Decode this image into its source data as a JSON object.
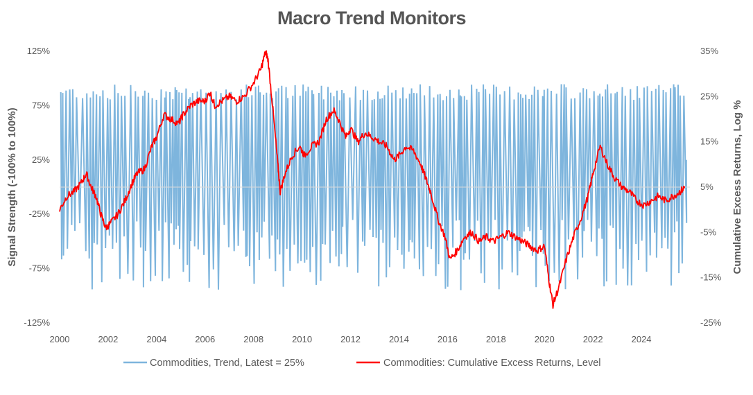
{
  "chart_data": {
    "type": "line",
    "title": "Macro Trend Monitors",
    "x_axis": {
      "ticks": [
        "2000",
        "2002",
        "2004",
        "2006",
        "2008",
        "2010",
        "2012",
        "2014",
        "2016",
        "2018",
        "2020",
        "2022",
        "2024"
      ],
      "range": [
        2000,
        2026
      ]
    },
    "y_left": {
      "label": "Signal Strength (-100% to 100%)",
      "ticks": [
        "125%",
        "75%",
        "25%",
        "-25%",
        "-75%",
        "-125%"
      ],
      "range": [
        -125,
        125
      ]
    },
    "y_right": {
      "label": "Cumulative Excess Returns, Log %",
      "ticks": [
        "35%",
        "25%",
        "15%",
        "5%",
        "-5%",
        "-15%",
        "-25%"
      ],
      "range": [
        -25,
        35
      ]
    },
    "series": [
      {
        "name": "Commodities, Trend, Latest = 25%",
        "axis": "left",
        "color": "#7EB5DD",
        "latest": 25
      },
      {
        "name": "Commodities: Cumulative Excess Returns, Level",
        "axis": "right",
        "color": "#FF0000",
        "points": [
          [
            2000.0,
            0
          ],
          [
            2000.3,
            3
          ],
          [
            2000.6,
            4
          ],
          [
            2000.9,
            6
          ],
          [
            2001.1,
            8
          ],
          [
            2001.3,
            5
          ],
          [
            2001.5,
            3
          ],
          [
            2001.7,
            -1
          ],
          [
            2001.9,
            -4
          ],
          [
            2002.1,
            -3
          ],
          [
            2002.4,
            -1
          ],
          [
            2002.7,
            2
          ],
          [
            2003.0,
            6
          ],
          [
            2003.2,
            8
          ],
          [
            2003.5,
            9
          ],
          [
            2003.8,
            14
          ],
          [
            2004.0,
            16
          ],
          [
            2004.3,
            21
          ],
          [
            2004.6,
            20
          ],
          [
            2004.9,
            19
          ],
          [
            2005.1,
            21
          ],
          [
            2005.4,
            23
          ],
          [
            2005.7,
            24
          ],
          [
            2006.0,
            24
          ],
          [
            2006.2,
            26
          ],
          [
            2006.4,
            23
          ],
          [
            2006.7,
            24
          ],
          [
            2007.0,
            25
          ],
          [
            2007.3,
            24
          ],
          [
            2007.6,
            25
          ],
          [
            2008.0,
            28
          ],
          [
            2008.3,
            31
          ],
          [
            2008.5,
            35
          ],
          [
            2008.6,
            33
          ],
          [
            2008.8,
            22
          ],
          [
            2009.0,
            10
          ],
          [
            2009.1,
            4
          ],
          [
            2009.3,
            8
          ],
          [
            2009.6,
            12
          ],
          [
            2009.9,
            14
          ],
          [
            2010.1,
            12
          ],
          [
            2010.4,
            14
          ],
          [
            2010.7,
            15
          ],
          [
            2011.0,
            20
          ],
          [
            2011.3,
            22
          ],
          [
            2011.5,
            20
          ],
          [
            2011.8,
            16
          ],
          [
            2012.0,
            18
          ],
          [
            2012.3,
            15
          ],
          [
            2012.6,
            17
          ],
          [
            2012.9,
            16
          ],
          [
            2013.2,
            15
          ],
          [
            2013.5,
            14
          ],
          [
            2013.8,
            11
          ],
          [
            2014.0,
            12
          ],
          [
            2014.3,
            14
          ],
          [
            2014.6,
            13
          ],
          [
            2014.9,
            10
          ],
          [
            2015.1,
            7
          ],
          [
            2015.3,
            4
          ],
          [
            2015.6,
            -2
          ],
          [
            2015.9,
            -6
          ],
          [
            2016.1,
            -11
          ],
          [
            2016.4,
            -9
          ],
          [
            2016.7,
            -6
          ],
          [
            2017.0,
            -5
          ],
          [
            2017.3,
            -7
          ],
          [
            2017.6,
            -6
          ],
          [
            2017.9,
            -7
          ],
          [
            2018.2,
            -6
          ],
          [
            2018.5,
            -5
          ],
          [
            2018.8,
            -6
          ],
          [
            2019.1,
            -7
          ],
          [
            2019.4,
            -8
          ],
          [
            2019.7,
            -9
          ],
          [
            2020.0,
            -8
          ],
          [
            2020.2,
            -16
          ],
          [
            2020.35,
            -21
          ],
          [
            2020.6,
            -17
          ],
          [
            2020.9,
            -11
          ],
          [
            2021.2,
            -6
          ],
          [
            2021.5,
            -2
          ],
          [
            2021.8,
            3
          ],
          [
            2022.0,
            8
          ],
          [
            2022.3,
            14
          ],
          [
            2022.6,
            10
          ],
          [
            2022.9,
            7
          ],
          [
            2023.2,
            5
          ],
          [
            2023.5,
            4
          ],
          [
            2023.8,
            2
          ],
          [
            2024.1,
            1
          ],
          [
            2024.4,
            2
          ],
          [
            2024.7,
            3
          ],
          [
            2025.0,
            2
          ],
          [
            2025.3,
            3
          ],
          [
            2025.6,
            4
          ],
          [
            2025.8,
            5
          ]
        ]
      }
    ],
    "legend_position": "bottom",
    "grid": false
  }
}
